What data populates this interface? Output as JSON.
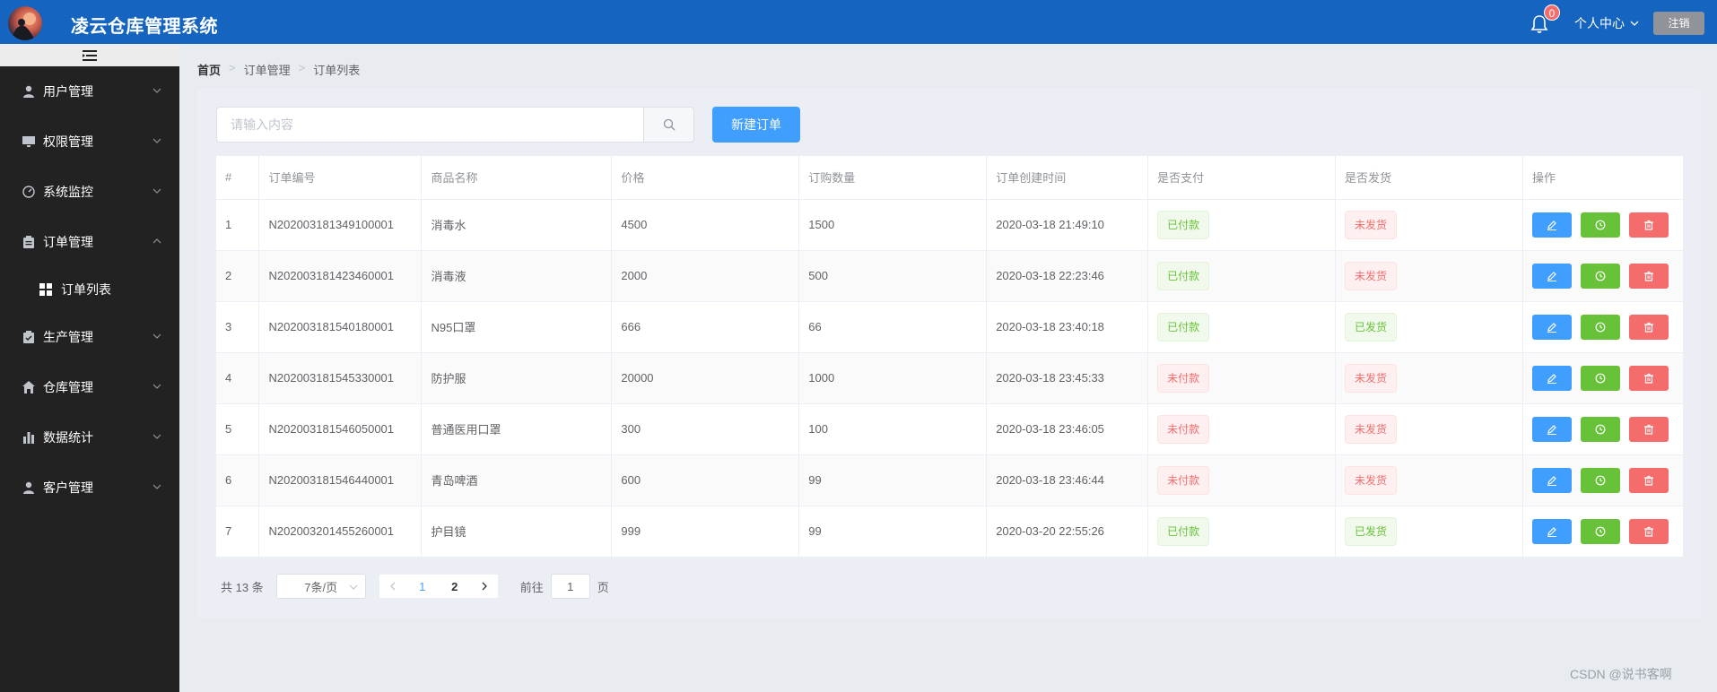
{
  "header": {
    "title": "凌云仓库管理系统",
    "notification_count": "0",
    "user_center_label": "个人中心",
    "logout_label": "注销"
  },
  "sidebar": {
    "items": [
      {
        "label": "用户管理",
        "icon": "user-icon"
      },
      {
        "label": "权限管理",
        "icon": "monitor-icon"
      },
      {
        "label": "系统监控",
        "icon": "gauge-icon"
      },
      {
        "label": "订单管理",
        "icon": "clipboard-icon",
        "expanded": true,
        "children": [
          {
            "label": "订单列表",
            "icon": "grid-icon"
          }
        ]
      },
      {
        "label": "生产管理",
        "icon": "checklist-icon"
      },
      {
        "label": "仓库管理",
        "icon": "house-icon"
      },
      {
        "label": "数据统计",
        "icon": "bar-chart-icon"
      },
      {
        "label": "客户管理",
        "icon": "user-icon"
      }
    ]
  },
  "breadcrumb": [
    "首页",
    "订单管理",
    "订单列表"
  ],
  "search": {
    "placeholder": "请输入内容",
    "value": ""
  },
  "toolbar": {
    "new_order_label": "新建订单"
  },
  "table": {
    "columns": [
      "#",
      "订单编号",
      "商品名称",
      "价格",
      "订购数量",
      "订单创建时间",
      "是否支付",
      "是否发货",
      "操作"
    ],
    "rows": [
      {
        "index": "1",
        "order_no": "N202003181349100001",
        "product": "消毒水",
        "price": "4500",
        "quantity": "1500",
        "created": "2020-03-18 21:49:10",
        "paid": "已付款",
        "shipped": "未发货"
      },
      {
        "index": "2",
        "order_no": "N202003181423460001",
        "product": "消毒液",
        "price": "2000",
        "quantity": "500",
        "created": "2020-03-18 22:23:46",
        "paid": "已付款",
        "shipped": "未发货"
      },
      {
        "index": "3",
        "order_no": "N202003181540180001",
        "product": "N95口罩",
        "price": "666",
        "quantity": "66",
        "created": "2020-03-18 23:40:18",
        "paid": "已付款",
        "shipped": "已发货"
      },
      {
        "index": "4",
        "order_no": "N202003181545330001",
        "product": "防护服",
        "price": "20000",
        "quantity": "1000",
        "created": "2020-03-18 23:45:33",
        "paid": "未付款",
        "shipped": "未发货"
      },
      {
        "index": "5",
        "order_no": "N202003181546050001",
        "product": "普通医用口罩",
        "price": "300",
        "quantity": "100",
        "created": "2020-03-18 23:46:05",
        "paid": "未付款",
        "shipped": "未发货"
      },
      {
        "index": "6",
        "order_no": "N202003181546440001",
        "product": "青岛啤酒",
        "price": "600",
        "quantity": "99",
        "created": "2020-03-18 23:46:44",
        "paid": "未付款",
        "shipped": "未发货"
      },
      {
        "index": "7",
        "order_no": "N202003201455260001",
        "product": "护目镜",
        "price": "999",
        "quantity": "99",
        "created": "2020-03-20 22:55:26",
        "paid": "已付款",
        "shipped": "已发货"
      }
    ]
  },
  "pagination": {
    "total_label": "共 13 条",
    "page_size_label": "7条/页",
    "pages": [
      "1",
      "2"
    ],
    "current_page": "1",
    "goto_prefix": "前往",
    "goto_value": "1",
    "goto_suffix": "页"
  },
  "colors": {
    "header_bg": "#1565c0",
    "sidebar_bg": "#222222",
    "primary": "#409eff",
    "success": "#67c23a",
    "danger": "#f56c6c"
  },
  "watermark": "CSDN @说书客啊"
}
